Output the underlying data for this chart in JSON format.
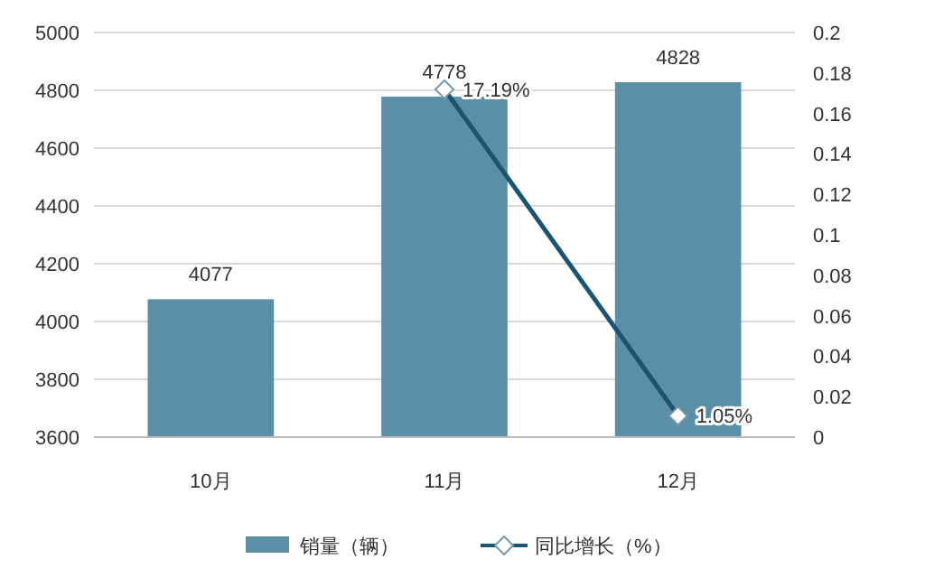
{
  "chart_data": {
    "type": "bar",
    "categories": [
      "10月",
      "11月",
      "12月"
    ],
    "series": [
      {
        "name": "销量（辆）",
        "color": "#5b8fa8",
        "values": [
          4077,
          4778,
          4828
        ],
        "value_labels": [
          "4077",
          "4778",
          "4828"
        ]
      },
      {
        "name": "同比增长（%）",
        "type": "line",
        "axis": "y2",
        "color": "#1b5470",
        "values": [
          null,
          0.1719,
          0.0105
        ],
        "value_labels": [
          null,
          "17.19%",
          "1.05%"
        ]
      }
    ],
    "ylim": [
      3600,
      5000
    ],
    "yticks": [
      3600,
      3800,
      4000,
      4200,
      4400,
      4600,
      4800,
      5000
    ],
    "y2lim": [
      0,
      0.2
    ],
    "y2ticks": [
      0,
      0.02,
      0.04,
      0.06,
      0.08,
      0.1,
      0.12,
      0.14,
      0.16,
      0.18,
      0.2
    ],
    "grid": "y",
    "legend": "bottom",
    "marker": "diamond",
    "line_style": "solid"
  }
}
